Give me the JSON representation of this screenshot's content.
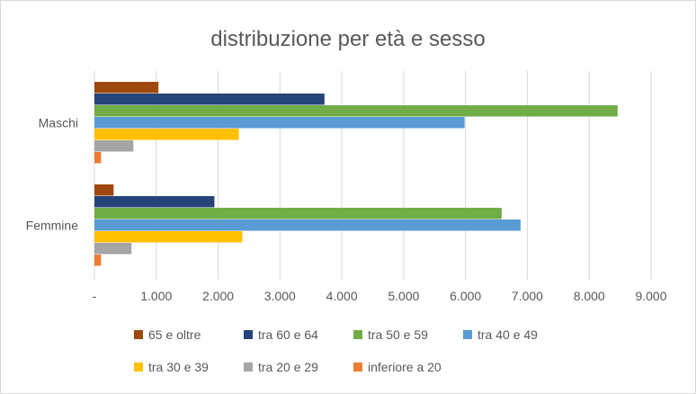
{
  "chart_data": {
    "type": "bar",
    "orientation": "horizontal",
    "title": "distribuzione per età e sesso",
    "categories": [
      "Maschi",
      "Femmine"
    ],
    "xlim": [
      0,
      9000
    ],
    "xticks": [
      "-",
      "1.000",
      "2.000",
      "3.000",
      "4.000",
      "5.000",
      "6.000",
      "7.000",
      "8.000",
      "9.000"
    ],
    "grid": true,
    "legend_position": "bottom",
    "series": [
      {
        "name": "65 e oltre",
        "color": "#9e480e",
        "values": [
          1035,
          310
        ]
      },
      {
        "name": "tra 60 e 64",
        "color": "#264478",
        "values": [
          3720,
          1940
        ]
      },
      {
        "name": "tra 50 e 59",
        "color": "#70ad47",
        "values": [
          8460,
          6585
        ]
      },
      {
        "name": "tra 40 e 49",
        "color": "#5b9bd5",
        "values": [
          5985,
          6890
        ]
      },
      {
        "name": "tra 30 e 39",
        "color": "#ffc000",
        "values": [
          2335,
          2390
        ]
      },
      {
        "name": "tra 20 e 29",
        "color": "#a5a5a5",
        "values": [
          630,
          600
        ]
      },
      {
        "name": "inferiore a 20",
        "color": "#ed7d31",
        "values": [
          107,
          107
        ]
      }
    ]
  }
}
